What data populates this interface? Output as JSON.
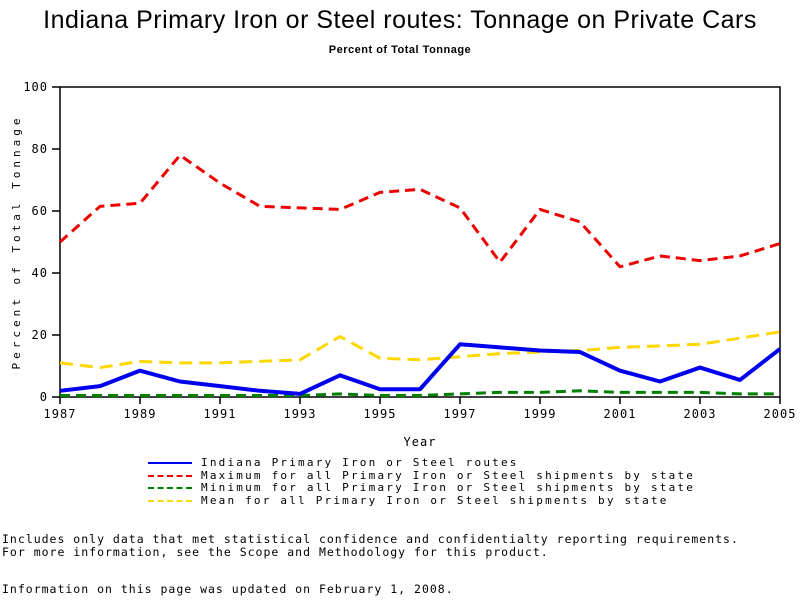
{
  "page": {
    "title": "Indiana Primary Iron or Steel routes: Tonnage on Private Cars",
    "subtitle": "Percent of Total Tonnage"
  },
  "chart_data": {
    "type": "line",
    "title": "Indiana Primary Iron or Steel routes: Tonnage on Private Cars",
    "subtitle": "Percent of Total Tonnage",
    "xlabel": "Year",
    "ylabel": "Percent of Total Tonnage",
    "ylim": [
      0,
      100
    ],
    "yticks": [
      0,
      20,
      40,
      60,
      80,
      100
    ],
    "xticks": [
      1987,
      1989,
      1991,
      1993,
      1995,
      1997,
      1999,
      2001,
      2003,
      2005
    ],
    "x": [
      1987,
      1988,
      1989,
      1990,
      1991,
      1992,
      1993,
      1994,
      1995,
      1996,
      1997,
      1998,
      1999,
      2000,
      2001,
      2002,
      2003,
      2004,
      2005
    ],
    "grid": false,
    "frame": true,
    "legend_position": "bottom",
    "axis_color": "#000000",
    "series": [
      {
        "name": "Indiana Primary Iron or Steel routes",
        "color": "#0000ee",
        "style": "solid",
        "width": 4,
        "dash": "",
        "values": [
          2,
          3.5,
          8.5,
          5,
          3.5,
          2,
          1,
          7,
          2.5,
          2.5,
          17,
          16,
          15,
          14.5,
          8.5,
          5,
          9.5,
          5.5,
          15.5
        ]
      },
      {
        "name": "Maximum for all Primary Iron or Steel shipments by state",
        "color": "#ee0000",
        "style": "dashed",
        "width": 3,
        "dash": "10,6",
        "values": [
          50,
          61.5,
          62.5,
          78,
          69,
          61.5,
          61,
          60.5,
          66,
          67,
          61,
          43.5,
          60.5,
          56.5,
          42,
          45.5,
          44,
          45.5,
          49.5
        ]
      },
      {
        "name": "Minimum for all Primary Iron or Steel shipments by state",
        "color": "#008000",
        "style": "dashed",
        "width": 3,
        "dash": "10,6",
        "values": [
          0.5,
          0.5,
          0.5,
          0.5,
          0.5,
          0.5,
          0.5,
          1,
          0.5,
          0.5,
          1,
          1.5,
          1.5,
          2,
          1.5,
          1.5,
          1.5,
          1,
          1
        ]
      },
      {
        "name": "Mean for all Primary Iron or Steel shipments by state",
        "color": "#ffd700",
        "style": "dashed",
        "width": 3,
        "dash": "13,7",
        "values": [
          11,
          9.5,
          11.5,
          11,
          11,
          11.5,
          12,
          19.5,
          12.5,
          12,
          13,
          14,
          14.5,
          15,
          16,
          16.5,
          17,
          19,
          21
        ]
      }
    ]
  },
  "footnotes": {
    "line1": "Includes only data that met statistical confidence and confidentialty reporting requirements.",
    "line2": "For more information, see the Scope and Methodology for this product.",
    "updated": "Information on this page was updated on February 1, 2008."
  }
}
